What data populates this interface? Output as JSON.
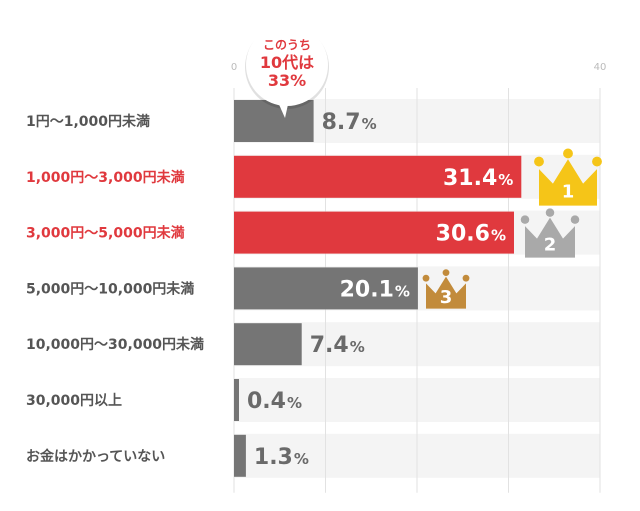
{
  "chart_data": {
    "type": "bar",
    "orientation": "horizontal",
    "categories": [
      "1円〜1,000円未満",
      "1,000円〜3,000円未満",
      "3,000円〜5,000円未満",
      "5,000円〜10,000円未満",
      "10,000円〜30,000円未満",
      "30,000円以上",
      "お金はかかっていない"
    ],
    "values": [
      8.7,
      31.4,
      30.6,
      20.1,
      7.4,
      0.4,
      1.3
    ],
    "unit": "%",
    "xlim": [
      0,
      40
    ],
    "ticks": [
      {
        "value": 0,
        "label": "0"
      },
      {
        "value": 40,
        "label": "40"
      }
    ],
    "grid_values": [
      10,
      20,
      30
    ],
    "highlighted": [
      1,
      2
    ],
    "ranks": [
      {
        "category_index": 1,
        "rank": "1",
        "color": "#f5c518"
      },
      {
        "category_index": 2,
        "rank": "2",
        "color": "#a9a9a9"
      },
      {
        "category_index": 3,
        "rank": "3",
        "color": "#c28b3b"
      }
    ],
    "callout": {
      "category_index": 0,
      "lines": [
        "このうち",
        "10代は",
        "33%"
      ]
    },
    "colors": {
      "bar": "#757575",
      "highlight": "#e0393e",
      "track": "#f4f4f4",
      "label_default": "#555555",
      "label_highlight": "#e0393e"
    }
  }
}
